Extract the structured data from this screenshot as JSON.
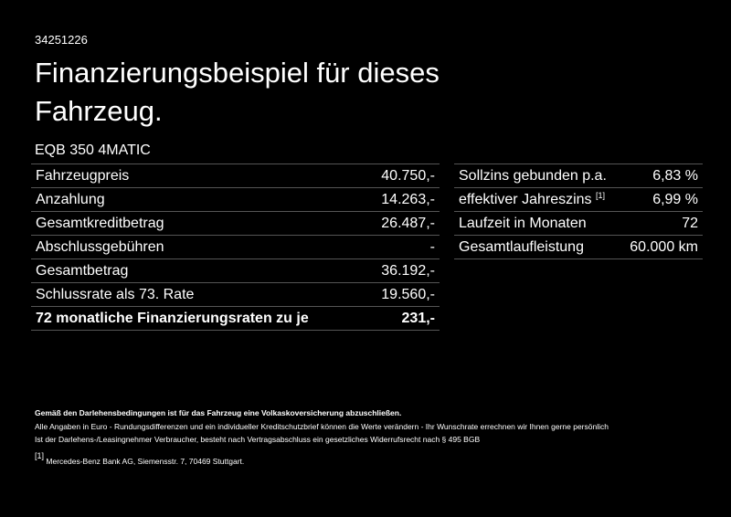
{
  "header": {
    "id": "34251226",
    "title_line1": "Finanzierungsbeispiel für dieses",
    "title_line2": "Fahrzeug.",
    "model": "EQB 350 4MATIC"
  },
  "left_table": {
    "rows": [
      [
        "Fahrzeugpreis",
        "40.750,-"
      ],
      [
        "Anzahlung",
        "14.263,-"
      ],
      [
        "Gesamtkreditbetrag",
        "26.487,-"
      ],
      [
        "Abschlussgebühren",
        "-"
      ],
      [
        "Gesamtbetrag",
        "36.192,-"
      ],
      [
        "Schlussrate als 73. Rate",
        "19.560,-"
      ],
      [
        "72 monatliche Finanzierungsraten zu je",
        "231,-"
      ]
    ]
  },
  "right_table": {
    "rows": [
      [
        "Sollzins gebunden p.a.",
        "6,83 %"
      ],
      [
        "effektiver Jahreszins",
        "6,99 %"
      ],
      [
        "Laufzeit in Monaten",
        "72"
      ],
      [
        "Gesamtlaufleistung",
        "60.000 km"
      ]
    ],
    "footnote_mark": "[1]"
  },
  "footer": {
    "bold_note": "Gemäß den Darlehensbedingungen ist für das Fahrzeug eine Volkaskoversicherung abzuschließen.",
    "line1": "Alle Angaben in Euro - Rundungsdifferenzen und ein individueller Kreditschutzbrief können die Werte verändern - Ihr Wunschrate errechnen wir Ihnen gerne persönlich",
    "line2": "Ist der Darlehens-/Leasingnehmer Verbraucher, besteht nach Vertragsabschluss ein gesetzliches Widerrufsrecht nach § 495 BGB",
    "footnote_mark": "[1]",
    "footnote_text": "Mercedes-Benz Bank AG, Siemensstr. 7, 70469 Stuttgart."
  }
}
